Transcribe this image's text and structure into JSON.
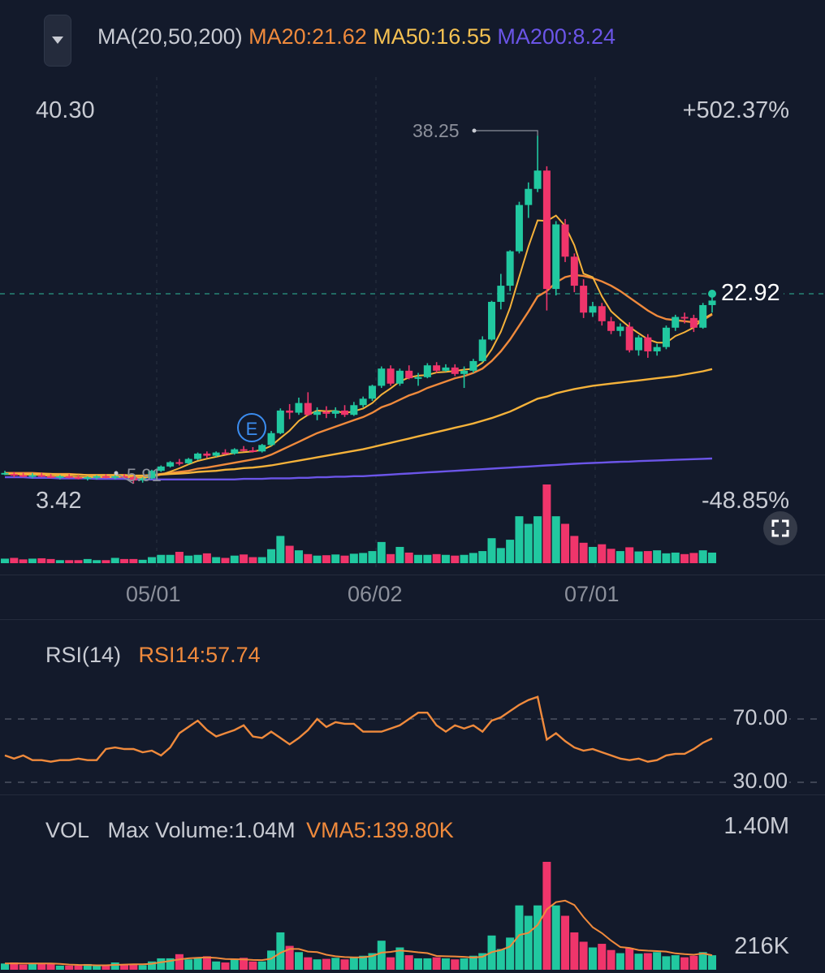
{
  "header": {
    "ma_label": "MA(20,50,200)",
    "ma20": "MA20:21.62",
    "ma50": "MA50:16.55",
    "ma200": "MA200:8.24"
  },
  "price_panel": {
    "high_label": "40.30",
    "low_label": "3.42",
    "pct_high": "+502.37%",
    "pct_low": "-48.85%",
    "peak_label": "38.25",
    "trough_label": "5.91",
    "current_price": "22.92",
    "event_marker": "E"
  },
  "date_axis": [
    "05/01",
    "06/02",
    "07/01"
  ],
  "rsi_panel": {
    "label": "RSI(14)",
    "value": "RSI14:57.74",
    "level_high": "70.00",
    "level_low": "30.00"
  },
  "vol_panel": {
    "label": "VOL",
    "max_volume": "Max Volume:1.04M",
    "vma5": "VMA5:139.80K",
    "axis_top": "1.40M",
    "axis_low": "216K"
  },
  "colors": {
    "background": "#131a2b",
    "up": "#21c8a0",
    "down": "#f0356b",
    "ma20": "#f08a3c",
    "ma50": "#f5c152",
    "ma200": "#6b55e8",
    "ma_fast": "#f5b23a",
    "rsi": "#f08a3c",
    "vma": "#f08a3c",
    "event": "#3b8df0"
  },
  "chart_data": [
    {
      "type": "candlestick",
      "title": "MA(20,50,200)",
      "ylim": [
        3.42,
        40.3
      ],
      "x_labels": [
        "05/01",
        "06/02",
        "07/01"
      ],
      "ohlc": [
        [
          6.9,
          7.1,
          6.7,
          6.9
        ],
        [
          6.8,
          7.0,
          6.5,
          6.7
        ],
        [
          6.7,
          6.9,
          6.5,
          6.6
        ],
        [
          6.6,
          6.9,
          6.4,
          6.7
        ],
        [
          6.7,
          6.9,
          6.5,
          6.6
        ],
        [
          6.6,
          6.8,
          6.4,
          6.5
        ],
        [
          6.5,
          6.7,
          6.3,
          6.6
        ],
        [
          6.6,
          6.8,
          6.4,
          6.5
        ],
        [
          6.5,
          6.7,
          6.3,
          6.4
        ],
        [
          6.4,
          6.6,
          6.2,
          6.5
        ],
        [
          6.5,
          6.7,
          6.3,
          6.6
        ],
        [
          6.6,
          6.8,
          6.4,
          6.5
        ],
        [
          6.5,
          6.7,
          6.3,
          6.6
        ],
        [
          6.6,
          6.8,
          6.4,
          6.5
        ],
        [
          6.5,
          6.6,
          5.91,
          6.2
        ],
        [
          6.2,
          6.5,
          6.0,
          6.4
        ],
        [
          6.4,
          7.2,
          6.3,
          7.1
        ],
        [
          7.1,
          7.6,
          7.0,
          7.5
        ],
        [
          7.5,
          8.0,
          7.4,
          7.9
        ],
        [
          7.9,
          8.2,
          7.6,
          7.8
        ],
        [
          7.8,
          8.3,
          7.7,
          8.2
        ],
        [
          8.2,
          8.8,
          8.1,
          8.7
        ],
        [
          8.7,
          8.9,
          8.3,
          8.5
        ],
        [
          8.5,
          8.9,
          8.4,
          8.8
        ],
        [
          8.8,
          9.1,
          8.6,
          8.7
        ],
        [
          8.7,
          9.2,
          8.6,
          9.1
        ],
        [
          9.1,
          9.4,
          8.9,
          9.0
        ],
        [
          9.0,
          9.3,
          8.8,
          8.9
        ],
        [
          8.9,
          9.6,
          8.8,
          9.5
        ],
        [
          9.5,
          10.8,
          9.4,
          10.6
        ],
        [
          10.6,
          12.9,
          10.5,
          12.7
        ],
        [
          12.7,
          13.3,
          11.9,
          12.5
        ],
        [
          12.5,
          13.9,
          12.3,
          13.4
        ],
        [
          13.4,
          14.4,
          12.2,
          12.3
        ],
        [
          12.3,
          13.0,
          11.8,
          12.6
        ],
        [
          12.6,
          13.1,
          12.0,
          12.4
        ],
        [
          12.4,
          13.0,
          12.0,
          12.7
        ],
        [
          12.7,
          13.2,
          12.1,
          12.3
        ],
        [
          12.3,
          13.5,
          12.2,
          13.2
        ],
        [
          13.2,
          14.0,
          13.0,
          13.8
        ],
        [
          13.8,
          15.1,
          13.6,
          15.0
        ],
        [
          15.0,
          16.8,
          14.8,
          16.6
        ],
        [
          16.6,
          16.9,
          15.0,
          15.2
        ],
        [
          15.2,
          16.6,
          15.0,
          16.4
        ],
        [
          16.4,
          16.9,
          15.6,
          15.7
        ],
        [
          15.7,
          16.2,
          15.0,
          15.8
        ],
        [
          15.8,
          17.1,
          15.7,
          16.9
        ],
        [
          16.9,
          17.2,
          16.2,
          16.4
        ],
        [
          16.4,
          17.0,
          16.3,
          16.7
        ],
        [
          16.7,
          17.0,
          15.9,
          16.1
        ],
        [
          16.1,
          16.8,
          14.8,
          16.4
        ],
        [
          16.4,
          17.5,
          16.2,
          17.3
        ],
        [
          17.3,
          19.6,
          17.2,
          19.3
        ],
        [
          19.3,
          22.9,
          19.2,
          22.8
        ],
        [
          22.8,
          25.4,
          22.1,
          24.3
        ],
        [
          24.3,
          27.6,
          23.8,
          27.5
        ],
        [
          27.5,
          32.1,
          27.3,
          31.8
        ],
        [
          31.8,
          33.9,
          30.6,
          33.3
        ],
        [
          33.3,
          38.25,
          33.0,
          35.0
        ],
        [
          35.0,
          35.4,
          22.0,
          24.0
        ],
        [
          24.0,
          30.3,
          23.4,
          30.0
        ],
        [
          30.0,
          30.5,
          26.5,
          27.0
        ],
        [
          27.0,
          27.3,
          23.7,
          24.3
        ],
        [
          24.3,
          24.9,
          21.3,
          21.8
        ],
        [
          21.8,
          22.8,
          21.4,
          22.4
        ],
        [
          22.4,
          22.7,
          20.6,
          21.0
        ],
        [
          21.0,
          21.4,
          19.8,
          20.1
        ],
        [
          20.1,
          20.8,
          19.6,
          20.5
        ],
        [
          20.5,
          20.9,
          18.1,
          18.3
        ],
        [
          18.3,
          19.7,
          17.8,
          19.5
        ],
        [
          19.5,
          19.8,
          17.6,
          18.2
        ],
        [
          18.2,
          18.9,
          17.8,
          18.6
        ],
        [
          18.6,
          20.6,
          18.4,
          20.4
        ],
        [
          20.4,
          21.6,
          20.1,
          21.4
        ],
        [
          21.4,
          21.8,
          20.8,
          21.3
        ],
        [
          21.3,
          21.6,
          20.0,
          20.4
        ],
        [
          20.4,
          22.7,
          20.3,
          22.5
        ],
        [
          22.5,
          23.3,
          21.8,
          22.92
        ]
      ],
      "series": [
        {
          "name": "MA20",
          "values": [
            6.9,
            6.9,
            6.9,
            6.9,
            6.85,
            6.8,
            6.8,
            6.8,
            6.75,
            6.7,
            6.7,
            6.7,
            6.7,
            6.7,
            6.65,
            6.6,
            6.7,
            6.8,
            6.9,
            7.0,
            7.1,
            7.3,
            7.4,
            7.55,
            7.7,
            7.85,
            8.0,
            8.15,
            8.3,
            8.6,
            9.0,
            9.4,
            9.8,
            10.2,
            10.6,
            10.9,
            11.2,
            11.5,
            11.8,
            12.1,
            12.5,
            13.0,
            13.3,
            13.7,
            14.1,
            14.4,
            14.8,
            15.1,
            15.4,
            15.7,
            15.9,
            16.2,
            16.6,
            17.3,
            18.2,
            19.3,
            20.6,
            21.9,
            23.3,
            23.8,
            24.6,
            25.1,
            25.3,
            25.2,
            25.0,
            24.7,
            24.3,
            23.8,
            23.2,
            22.6,
            22.0,
            21.5,
            21.2,
            21.1,
            21.0,
            20.9,
            21.1,
            21.62
          ]
        },
        {
          "name": "MA50",
          "values": [
            6.8,
            6.8,
            6.8,
            6.8,
            6.8,
            6.8,
            6.75,
            6.75,
            6.75,
            6.7,
            6.7,
            6.7,
            6.7,
            6.7,
            6.65,
            6.65,
            6.7,
            6.75,
            6.8,
            6.85,
            6.9,
            7.0,
            7.05,
            7.1,
            7.2,
            7.25,
            7.35,
            7.4,
            7.5,
            7.6,
            7.75,
            7.9,
            8.05,
            8.2,
            8.35,
            8.5,
            8.65,
            8.8,
            8.95,
            9.1,
            9.3,
            9.5,
            9.7,
            9.9,
            10.1,
            10.3,
            10.5,
            10.7,
            10.9,
            11.1,
            11.3,
            11.5,
            11.75,
            12.0,
            12.3,
            12.6,
            13.0,
            13.4,
            13.8,
            14.0,
            14.3,
            14.5,
            14.7,
            14.85,
            15.0,
            15.1,
            15.2,
            15.3,
            15.4,
            15.5,
            15.6,
            15.7,
            15.8,
            15.9,
            16.05,
            16.2,
            16.35,
            16.55
          ]
        },
        {
          "name": "MA200",
          "values": [
            6.5,
            6.5,
            6.5,
            6.45,
            6.45,
            6.45,
            6.4,
            6.4,
            6.4,
            6.4,
            6.35,
            6.35,
            6.35,
            6.35,
            6.3,
            6.3,
            6.3,
            6.3,
            6.3,
            6.3,
            6.3,
            6.3,
            6.3,
            6.3,
            6.3,
            6.3,
            6.35,
            6.35,
            6.35,
            6.4,
            6.4,
            6.4,
            6.45,
            6.45,
            6.5,
            6.5,
            6.55,
            6.55,
            6.6,
            6.6,
            6.65,
            6.7,
            6.75,
            6.8,
            6.85,
            6.9,
            6.95,
            7.0,
            7.05,
            7.1,
            7.15,
            7.2,
            7.25,
            7.3,
            7.35,
            7.4,
            7.45,
            7.5,
            7.55,
            7.6,
            7.65,
            7.7,
            7.75,
            7.8,
            7.83,
            7.86,
            7.9,
            7.93,
            7.96,
            8.0,
            8.03,
            8.06,
            8.09,
            8.12,
            8.15,
            8.18,
            8.21,
            8.24
          ]
        }
      ]
    },
    {
      "type": "line",
      "title": "RSI(14)",
      "ylim": [
        0,
        100
      ],
      "series": [
        {
          "name": "RSI14",
          "values": [
            47,
            45,
            47,
            44,
            44,
            43,
            44,
            44,
            45,
            44,
            44,
            51,
            52,
            51,
            51,
            49,
            50,
            47,
            52,
            61,
            65,
            69,
            63,
            59,
            61,
            63,
            66,
            59,
            58,
            62,
            58,
            54,
            58,
            63,
            70,
            65,
            68,
            67,
            67,
            62,
            62,
            62,
            64,
            66,
            70,
            74,
            74,
            66,
            62,
            66,
            64,
            66,
            62,
            69,
            71,
            75,
            79,
            82,
            84,
            57,
            61,
            56,
            52,
            50,
            51,
            49,
            47,
            45,
            44,
            45,
            43,
            44,
            47,
            48,
            48,
            51,
            55,
            57.74
          ]
        }
      ]
    },
    {
      "type": "bar",
      "title": "VOL",
      "ylim": [
        0,
        1400000
      ],
      "values": [
        60,
        70,
        50,
        60,
        65,
        55,
        40,
        40,
        40,
        55,
        40,
        40,
        70,
        55,
        55,
        45,
        80,
        110,
        110,
        150,
        100,
        110,
        130,
        80,
        70,
        100,
        115,
        80,
        80,
        185,
        360,
        230,
        170,
        120,
        100,
        105,
        115,
        100,
        125,
        135,
        160,
        280,
        120,
        215,
        140,
        110,
        110,
        120,
        110,
        100,
        110,
        135,
        160,
        330,
        200,
        310,
        620,
        520,
        620,
        1040,
        620,
        520,
        360,
        270,
        215,
        250,
        190,
        160,
        210,
        155,
        160,
        170,
        130,
        140,
        120,
        135,
        170,
        139.8
      ],
      "series": [
        {
          "name": "VMA5",
          "values": [
            60,
            62,
            60,
            60,
            61,
            60,
            56,
            50,
            47,
            46,
            43,
            43,
            47,
            50,
            52,
            53,
            58,
            73,
            85,
            99,
            110,
            116,
            120,
            114,
            104,
            102,
            99,
            95,
            93,
            106,
            163,
            200,
            200,
            175,
            170,
            145,
            130,
            122,
            119,
            119,
            132,
            165,
            172,
            185,
            178,
            168,
            160,
            133,
            130,
            128,
            124,
            117,
            125,
            170,
            190,
            224,
            335,
            355,
            432,
            582,
            651,
            666,
            624,
            508,
            410,
            353,
            281,
            219,
            210,
            190,
            184,
            180,
            175,
            158,
            150,
            145,
            157,
            139.8
          ]
        }
      ]
    }
  ]
}
